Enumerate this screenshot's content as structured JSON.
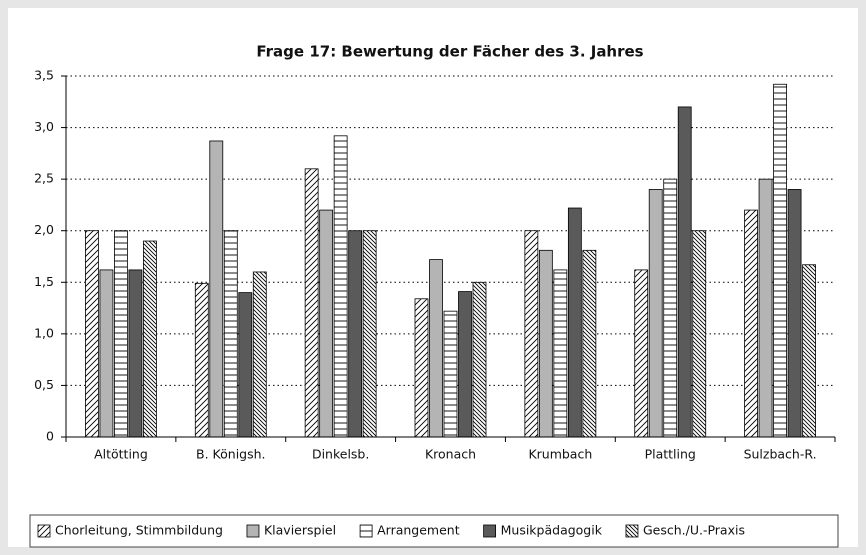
{
  "chart_data": {
    "type": "bar",
    "title": "Frage 17: Bewertung der Fächer des 3. Jahres",
    "categories": [
      "Altötting",
      "B. Königsh.",
      "Dinkelsb.",
      "Kronach",
      "Krumbach",
      "Plattling",
      "Sulzbach-R."
    ],
    "series": [
      {
        "name": "Chorleitung, Stimmbildung",
        "color": "#000000",
        "pattern": "diagonal",
        "values": [
          2.0,
          1.49,
          2.6,
          1.34,
          2.0,
          1.62,
          2.2
        ]
      },
      {
        "name": "Klavierspiel",
        "color": "#b4b4b4",
        "pattern": "solid",
        "values": [
          1.62,
          2.87,
          2.2,
          1.72,
          1.81,
          2.4,
          2.5
        ]
      },
      {
        "name": "Arrangement",
        "color": "#000000",
        "pattern": "horizontal",
        "values": [
          2.0,
          2.0,
          2.92,
          1.22,
          1.62,
          2.5,
          3.42
        ]
      },
      {
        "name": "Musikpädagogik",
        "color": "#5a5a5a",
        "pattern": "solid",
        "values": [
          1.62,
          1.4,
          2.0,
          1.41,
          2.22,
          3.2,
          2.4
        ]
      },
      {
        "name": "Gesch./U.-Praxis",
        "color": "#000000",
        "pattern": "diagonal-back",
        "values": [
          1.9,
          1.6,
          2.0,
          1.5,
          1.81,
          2.0,
          1.67
        ]
      }
    ],
    "ylim": [
      0,
      3.5
    ],
    "yticks": [
      0,
      {
        "value": 0.5,
        "label": "0,5"
      },
      {
        "value": 1.0,
        "label": "1,0"
      },
      {
        "value": 1.5,
        "label": "1,5"
      },
      {
        "value": 2.0,
        "label": "2,0"
      },
      {
        "value": 2.5,
        "label": "2,5"
      },
      {
        "value": 3.0,
        "label": "3,0"
      },
      {
        "value": 3.5,
        "label": "3,5"
      }
    ],
    "grid": true,
    "legend": "bottom"
  }
}
